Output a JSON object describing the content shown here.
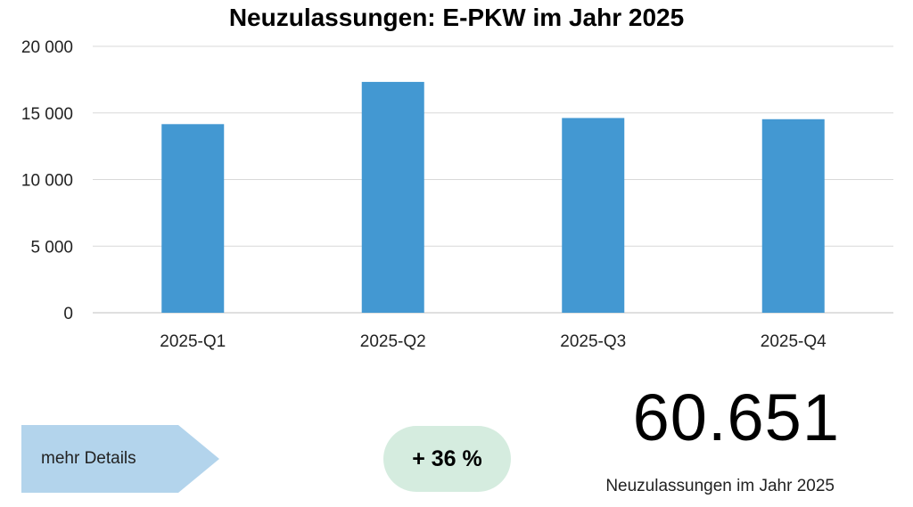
{
  "chart_data": {
    "type": "bar",
    "title": "Neuzulassungen: E-PKW im Jahr 2025",
    "categories": [
      "2025-Q1",
      "2025-Q2",
      "2025-Q3",
      "2025-Q4"
    ],
    "values": [
      14160,
      17330,
      14620,
      14530
    ],
    "ylim": [
      0,
      20000
    ],
    "yticks": [
      0,
      5000,
      10000,
      15000,
      20000
    ],
    "ytick_labels": [
      "0",
      "5 000",
      "10 000",
      "15 000",
      "20 000"
    ],
    "grid": true,
    "bar_color": "#4398d2"
  },
  "details_button": {
    "label": "mehr Details",
    "color": "#b3d4ec"
  },
  "change_badge": {
    "label": "+ 36 %",
    "color": "#d5ecdf"
  },
  "summary": {
    "total": "60.651",
    "caption": "Neuzulassungen im Jahr 2025"
  }
}
